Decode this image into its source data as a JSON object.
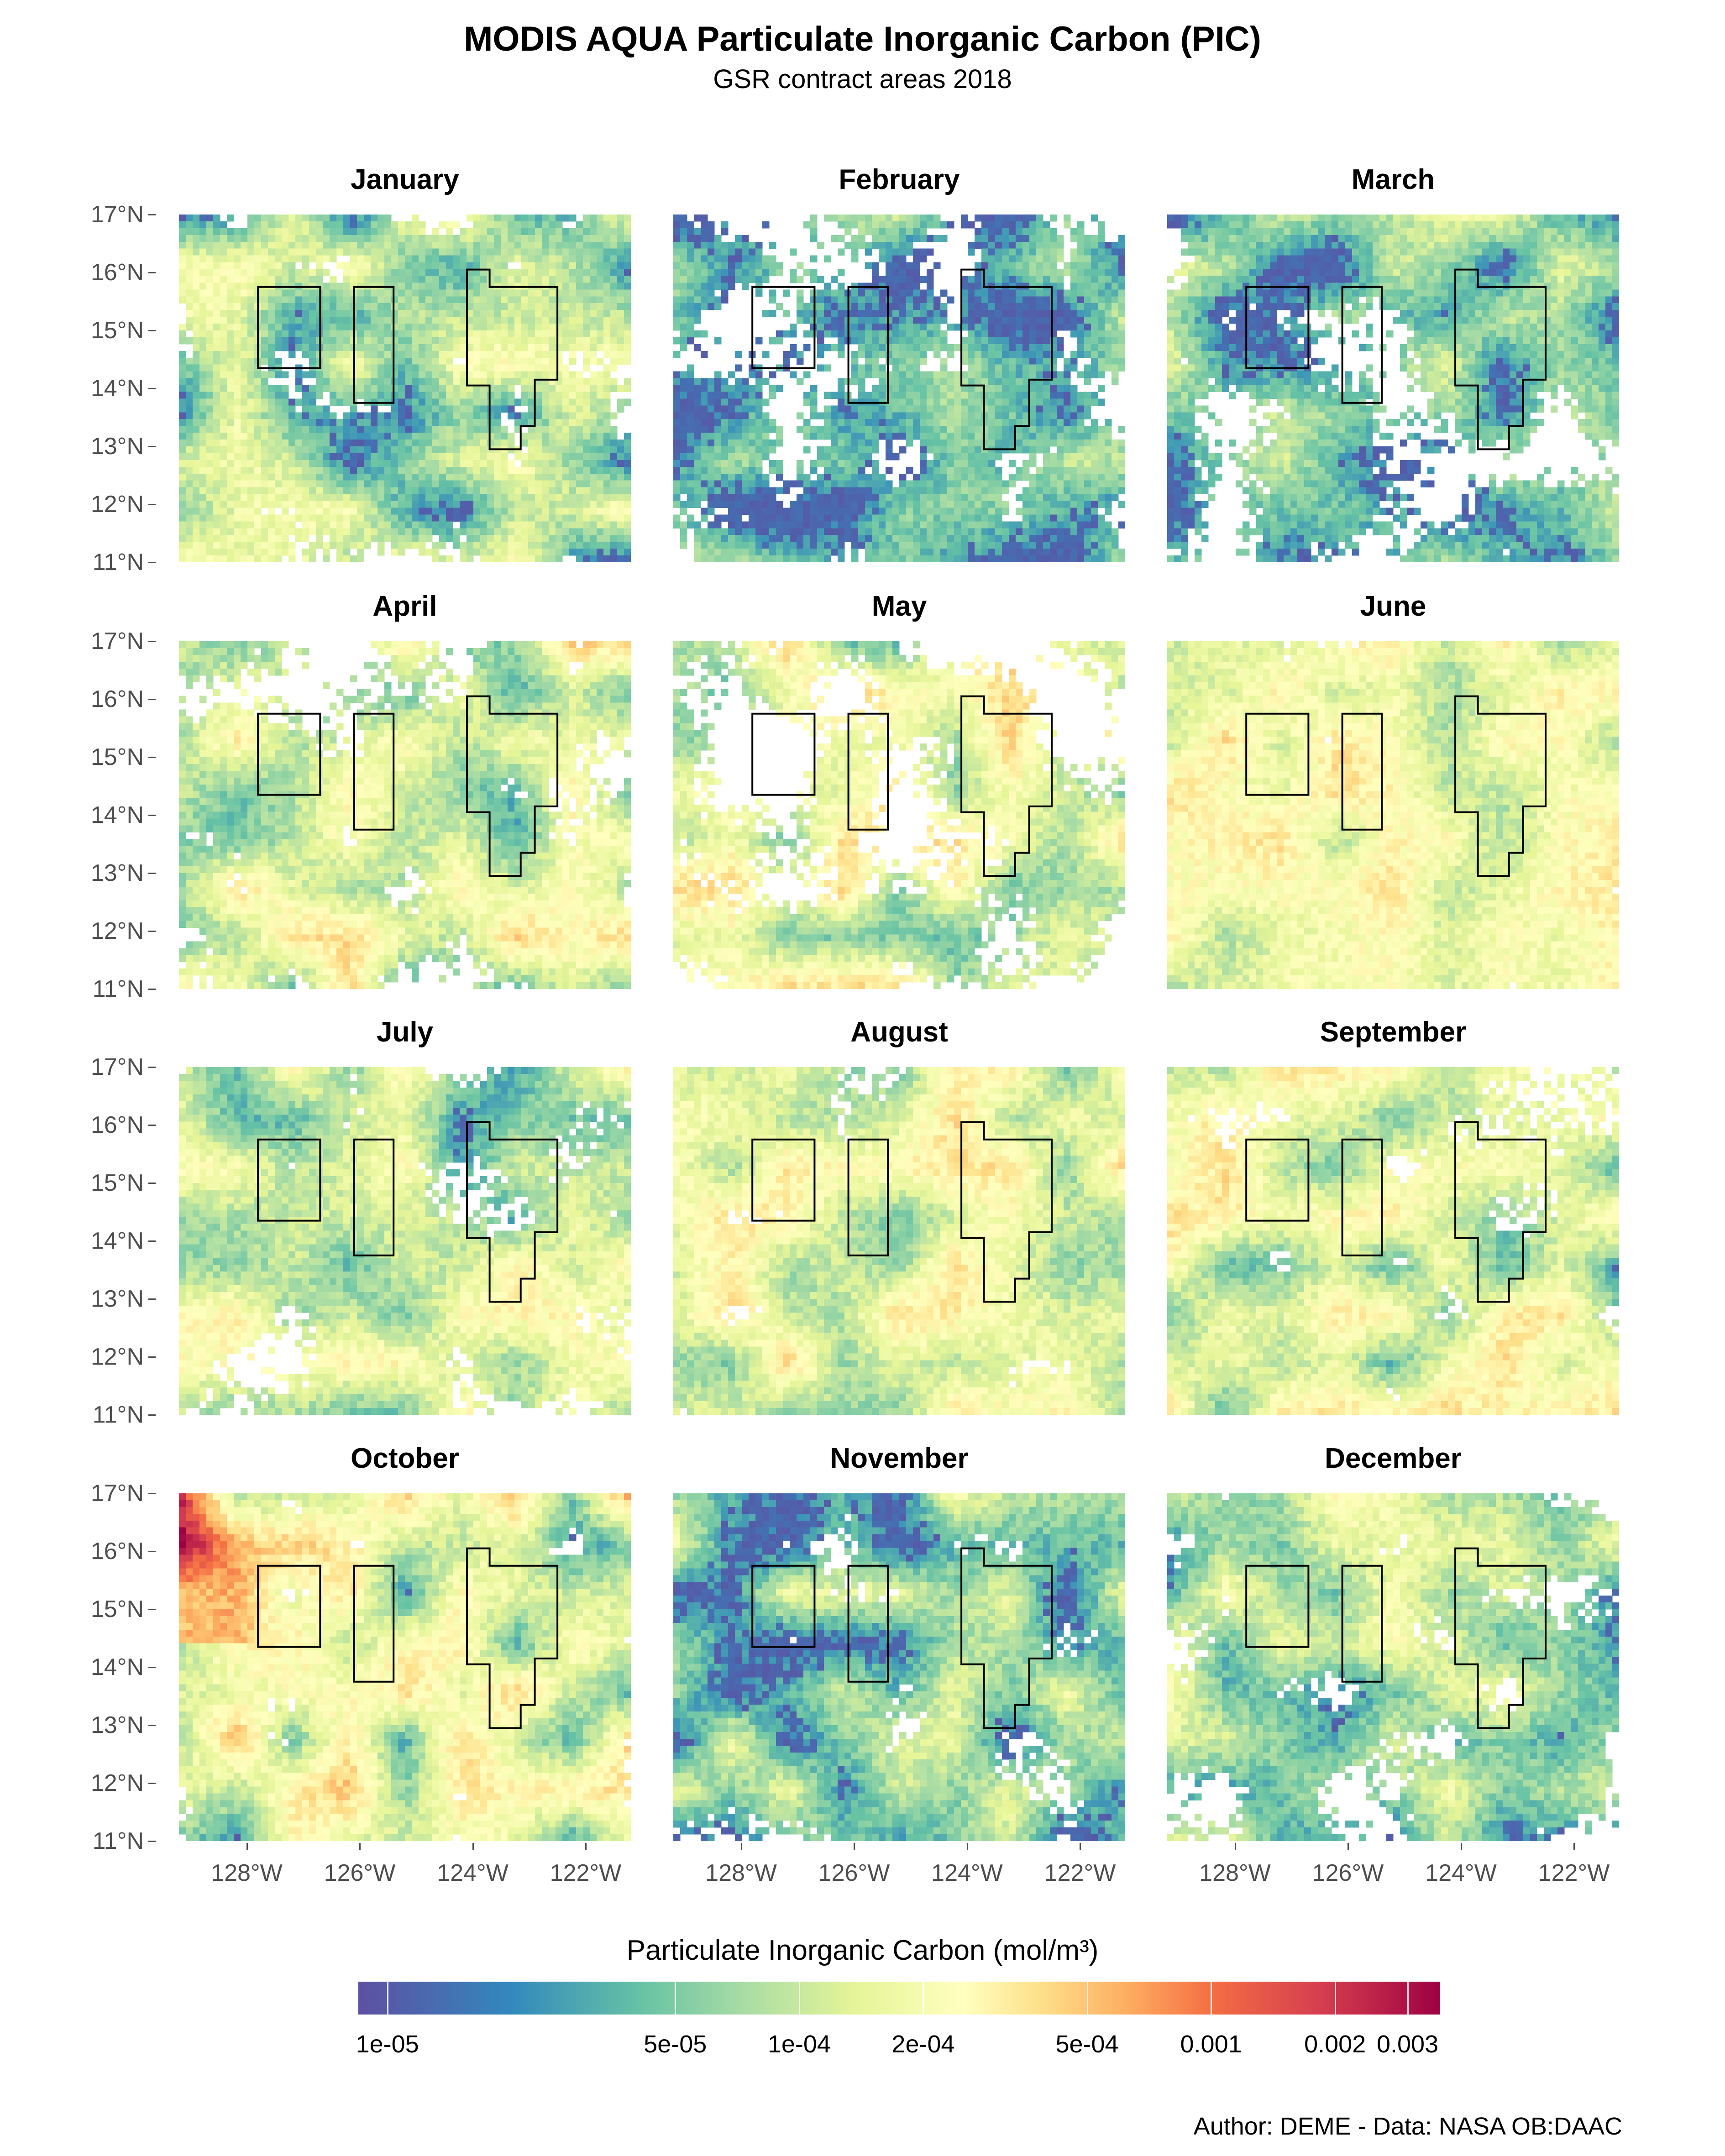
{
  "title": "MODIS AQUA Particulate Inorganic Carbon (PIC)",
  "subtitle": "GSR contract areas 2018",
  "months": [
    "January",
    "February",
    "March",
    "April",
    "May",
    "June",
    "July",
    "August",
    "September",
    "October",
    "November",
    "December"
  ],
  "y_axis_labels": [
    "17°N",
    "16°N",
    "15°N",
    "14°N",
    "13°N",
    "12°N",
    "11°N"
  ],
  "x_axis_labels": [
    "128°W",
    "126°W",
    "124°W",
    "122°W"
  ],
  "legend": {
    "title": "Particulate Inorganic Carbon (mol/m³)",
    "tick_labels": [
      "1e-05",
      "5e-05",
      "1e-04",
      "2e-04",
      "5e-04",
      "0.001",
      "0.002",
      "0.003"
    ],
    "tick_values": [
      1e-05,
      5e-05,
      0.0001,
      0.0002,
      0.0005,
      0.001,
      0.002,
      0.003
    ],
    "range": [
      8.5e-06,
      0.0036
    ],
    "scale": "log",
    "palette": [
      "#5e4fa2",
      "#3288bd",
      "#66c2a5",
      "#abdda4",
      "#e6f598",
      "#ffffbf",
      "#fee08b",
      "#fdae61",
      "#f46d43",
      "#d53e4f",
      "#9e0142"
    ]
  },
  "map": {
    "lat_range": [
      11,
      17
    ],
    "lon_range": [
      -129.2,
      -121.2
    ],
    "contract_areas": [
      {
        "name": "area-1",
        "lonlat": [
          [
            -127.8,
            15.75
          ],
          [
            -126.7,
            15.75
          ],
          [
            -126.7,
            14.35
          ],
          [
            -127.8,
            14.35
          ]
        ]
      },
      {
        "name": "area-2",
        "lonlat": [
          [
            -126.1,
            15.75
          ],
          [
            -125.4,
            15.75
          ],
          [
            -125.4,
            13.75
          ],
          [
            -126.1,
            13.75
          ]
        ]
      },
      {
        "name": "area-3",
        "lonlat": [
          [
            -124.1,
            16.05
          ],
          [
            -123.7,
            16.05
          ],
          [
            -123.7,
            15.75
          ],
          [
            -122.5,
            15.75
          ],
          [
            -122.5,
            14.15
          ],
          [
            -122.9,
            14.15
          ],
          [
            -122.9,
            13.35
          ],
          [
            -123.15,
            13.35
          ],
          [
            -123.15,
            12.95
          ],
          [
            -123.7,
            12.95
          ],
          [
            -123.7,
            14.05
          ],
          [
            -124.1,
            14.05
          ]
        ]
      }
    ]
  },
  "credit": "Author: DEME - Data: NASA OB:DAAC"
}
